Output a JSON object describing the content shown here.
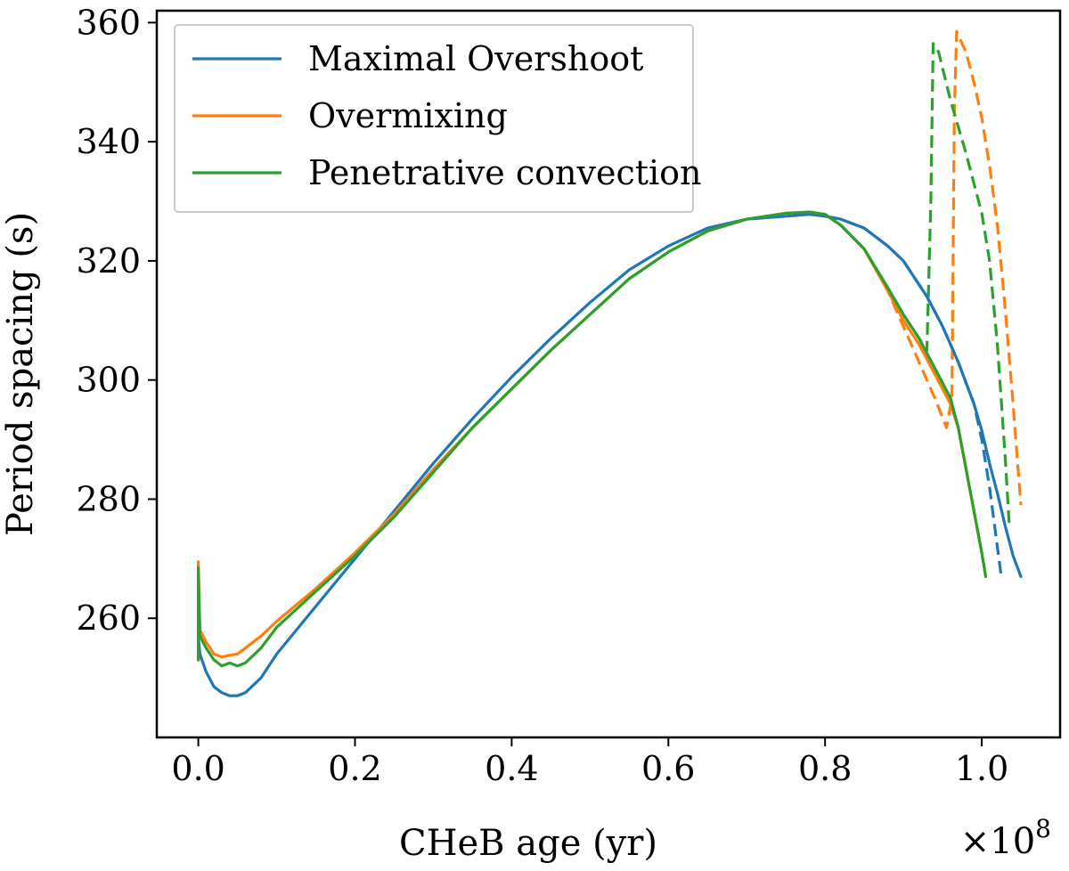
{
  "chart_data": {
    "type": "line",
    "title": "",
    "xlabel": "CHeB age (yr)",
    "ylabel": "Period spacing (s)",
    "x_multiplier_label": "×10",
    "x_multiplier_exponent": "8",
    "xlim": [
      -0.053,
      1.1
    ],
    "ylim": [
      240,
      362
    ],
    "xticks": [
      0.0,
      0.2,
      0.4,
      0.6,
      0.8,
      1.0
    ],
    "xtick_labels": [
      "0.0",
      "0.2",
      "0.4",
      "0.6",
      "0.8",
      "1.0"
    ],
    "yticks": [
      260,
      280,
      300,
      320,
      340,
      360
    ],
    "ytick_labels": [
      "260",
      "280",
      "300",
      "320",
      "340",
      "360"
    ],
    "grid": false,
    "legend_position": "top-left",
    "series": [
      {
        "name": "Maximal Overshoot",
        "color": "#1f77b4",
        "solid": {
          "x": [
            0.0,
            0.0,
            0.002,
            0.01,
            0.02,
            0.03,
            0.04,
            0.05,
            0.06,
            0.08,
            0.1,
            0.15,
            0.2,
            0.25,
            0.3,
            0.35,
            0.4,
            0.45,
            0.5,
            0.55,
            0.6,
            0.65,
            0.7,
            0.75,
            0.78,
            0.8,
            0.82,
            0.85,
            0.88,
            0.9,
            0.93,
            0.95,
            0.97,
            0.99,
            1.0,
            1.01,
            1.02,
            1.03,
            1.04,
            1.05
          ],
          "y": [
            253,
            257,
            254,
            251,
            248.5,
            247.5,
            247,
            247,
            247.5,
            250,
            254,
            262,
            270,
            278,
            286,
            293.5,
            300.5,
            307,
            313,
            318.5,
            322.5,
            325.5,
            327,
            327.5,
            327.8,
            327.5,
            327,
            325.5,
            322.5,
            320,
            314,
            309,
            303,
            296,
            291.5,
            286,
            281,
            275.5,
            270.5,
            267
          ]
        },
        "dashed": {
          "x": [
            0.8,
            0.82,
            0.85,
            0.88,
            0.9,
            0.93,
            0.95,
            0.97,
            0.99,
            1.0,
            1.01,
            1.015,
            1.02,
            1.025
          ],
          "y": [
            327.5,
            327,
            325.5,
            322.5,
            320,
            314,
            309,
            303,
            296,
            290,
            282,
            277,
            272,
            267
          ]
        }
      },
      {
        "name": "Overmixing",
        "color": "#ff7f0e",
        "solid": {
          "x": [
            0.0,
            0.0,
            0.002,
            0.01,
            0.02,
            0.03,
            0.04,
            0.05,
            0.06,
            0.08,
            0.1,
            0.15,
            0.2,
            0.25,
            0.3,
            0.35,
            0.4,
            0.45,
            0.5,
            0.55,
            0.6,
            0.65,
            0.7,
            0.75,
            0.78,
            0.8,
            0.82,
            0.85,
            0.88,
            0.9,
            0.92,
            0.94,
            0.96,
            0.97,
            0.98,
            0.99,
            1.0,
            1.005
          ],
          "y": [
            253,
            269.5,
            258,
            256,
            254,
            253.5,
            253.8,
            254,
            255,
            257,
            259.5,
            265,
            271,
            277.5,
            285,
            292,
            298.5,
            305,
            311,
            317,
            321.5,
            325,
            327,
            328,
            328.2,
            327.8,
            326,
            322,
            315,
            310,
            306,
            301,
            296,
            292,
            285,
            278,
            271,
            267
          ]
        },
        "dashed": {
          "x": [
            0.8,
            0.82,
            0.85,
            0.88,
            0.9,
            0.92,
            0.94,
            0.955,
            0.962,
            0.965,
            0.968,
            0.98,
            0.99,
            1.0,
            1.01,
            1.02,
            1.03,
            1.04,
            1.05
          ],
          "y": [
            327.8,
            326,
            322,
            315,
            309,
            303,
            297,
            292,
            297,
            345,
            358.5,
            355,
            350,
            344,
            336,
            326,
            312,
            296,
            279
          ]
        }
      },
      {
        "name": "Penetrative convection",
        "color": "#2ca02c",
        "solid": {
          "x": [
            0.0,
            0.0,
            0.002,
            0.01,
            0.02,
            0.03,
            0.04,
            0.05,
            0.06,
            0.08,
            0.1,
            0.15,
            0.2,
            0.25,
            0.3,
            0.35,
            0.4,
            0.45,
            0.5,
            0.55,
            0.6,
            0.65,
            0.7,
            0.75,
            0.78,
            0.8,
            0.82,
            0.85,
            0.88,
            0.9,
            0.92,
            0.94,
            0.96,
            0.97,
            0.98,
            0.99,
            1.0,
            1.005
          ],
          "y": [
            253,
            268.5,
            257,
            255,
            253,
            252,
            252.5,
            252,
            252.5,
            255,
            258.5,
            264.5,
            270.5,
            277,
            284.5,
            292,
            298.5,
            305,
            311,
            317,
            321.5,
            325,
            327,
            328,
            328.2,
            327.8,
            326,
            322,
            315.5,
            311,
            307,
            302,
            297,
            292,
            285,
            278,
            271,
            267
          ]
        },
        "dashed": {
          "x": [
            0.8,
            0.82,
            0.85,
            0.88,
            0.9,
            0.92,
            0.93,
            0.935,
            0.938,
            0.945,
            0.96,
            0.98,
            1.0,
            1.01,
            1.02,
            1.03,
            1.035
          ],
          "y": [
            327.8,
            326,
            322,
            315.5,
            311,
            307,
            305,
            330,
            356.5,
            355,
            347,
            338,
            328,
            320,
            306,
            287,
            276
          ]
        }
      }
    ]
  }
}
